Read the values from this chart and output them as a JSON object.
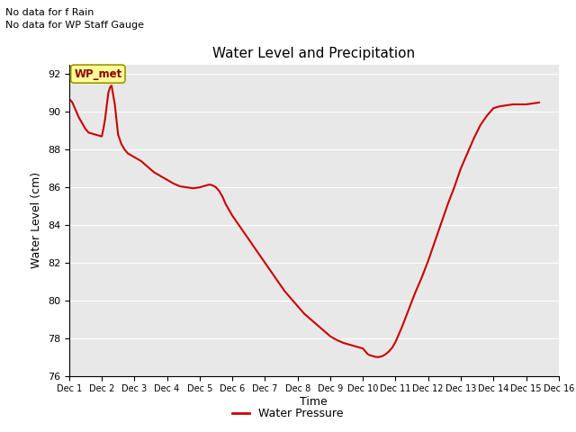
{
  "title": "Water Level and Precipitation",
  "xlabel": "Time",
  "ylabel": "Water Level (cm)",
  "ylim": [
    76,
    92.5
  ],
  "xlim": [
    1,
    16
  ],
  "background_color": "#e8e8e8",
  "line_color": "#cc0000",
  "line_width": 1.5,
  "annotations_top_left": [
    "No data for f Rain",
    "No data for WP Staff Gauge"
  ],
  "legend_box_label": "WP_met",
  "legend_box_bg": "#ffff99",
  "legend_box_border": "#999900",
  "footer_legend_label": "Water Pressure",
  "x_tick_labels": [
    "Dec 1",
    "Dec 2",
    "Dec 3",
    "Dec 4",
    "Dec 5",
    "Dec 6",
    "Dec 7",
    "Dec 8",
    "Dec 9",
    "Dec 10",
    "Dec 11",
    "Dec 12",
    "Dec 13",
    "Dec 14",
    "Dec 15",
    "Dec 16"
  ],
  "x_ticks": [
    1,
    2,
    3,
    4,
    5,
    6,
    7,
    8,
    9,
    10,
    11,
    12,
    13,
    14,
    15,
    16
  ],
  "y_ticks": [
    76,
    78,
    80,
    82,
    84,
    86,
    88,
    90,
    92
  ],
  "water_pressure_x": [
    1.0,
    1.05,
    1.1,
    1.15,
    1.2,
    1.3,
    1.4,
    1.5,
    1.6,
    1.7,
    1.8,
    1.9,
    2.0,
    2.05,
    2.1,
    2.15,
    2.2,
    2.25,
    2.3,
    2.4,
    2.5,
    2.6,
    2.7,
    2.8,
    2.9,
    3.0,
    3.2,
    3.4,
    3.6,
    3.8,
    4.0,
    4.2,
    4.4,
    4.6,
    4.8,
    5.0,
    5.1,
    5.2,
    5.3,
    5.4,
    5.5,
    5.6,
    5.7,
    5.8,
    5.9,
    6.0,
    6.2,
    6.4,
    6.6,
    6.8,
    7.0,
    7.2,
    7.4,
    7.6,
    7.8,
    8.0,
    8.2,
    8.4,
    8.6,
    8.8,
    9.0,
    9.2,
    9.4,
    9.6,
    9.8,
    10.0,
    10.05,
    10.1,
    10.15,
    10.2,
    10.3,
    10.4,
    10.5,
    10.6,
    10.7,
    10.8,
    10.9,
    11.0,
    11.2,
    11.4,
    11.6,
    11.8,
    12.0,
    12.2,
    12.4,
    12.6,
    12.8,
    13.0,
    13.2,
    13.4,
    13.6,
    13.8,
    14.0,
    14.2,
    14.4,
    14.6,
    14.8,
    15.0,
    15.2,
    15.4
  ],
  "water_pressure_y": [
    90.7,
    90.6,
    90.5,
    90.3,
    90.1,
    89.7,
    89.4,
    89.1,
    88.9,
    88.85,
    88.8,
    88.75,
    88.7,
    89.1,
    89.6,
    90.3,
    91.0,
    91.3,
    91.4,
    90.4,
    88.8,
    88.3,
    88.0,
    87.8,
    87.7,
    87.6,
    87.4,
    87.1,
    86.8,
    86.6,
    86.4,
    86.2,
    86.05,
    86.0,
    85.95,
    86.0,
    86.05,
    86.1,
    86.15,
    86.1,
    86.0,
    85.8,
    85.5,
    85.1,
    84.8,
    84.5,
    84.0,
    83.5,
    83.0,
    82.5,
    82.0,
    81.5,
    81.0,
    80.5,
    80.1,
    79.7,
    79.3,
    79.0,
    78.7,
    78.4,
    78.1,
    77.9,
    77.75,
    77.65,
    77.55,
    77.45,
    77.35,
    77.25,
    77.15,
    77.1,
    77.05,
    77.0,
    77.0,
    77.05,
    77.15,
    77.3,
    77.5,
    77.8,
    78.6,
    79.5,
    80.4,
    81.2,
    82.1,
    83.1,
    84.1,
    85.1,
    86.0,
    87.0,
    87.8,
    88.6,
    89.3,
    89.8,
    90.2,
    90.3,
    90.35,
    90.4,
    90.4,
    90.4,
    90.45,
    90.5
  ]
}
